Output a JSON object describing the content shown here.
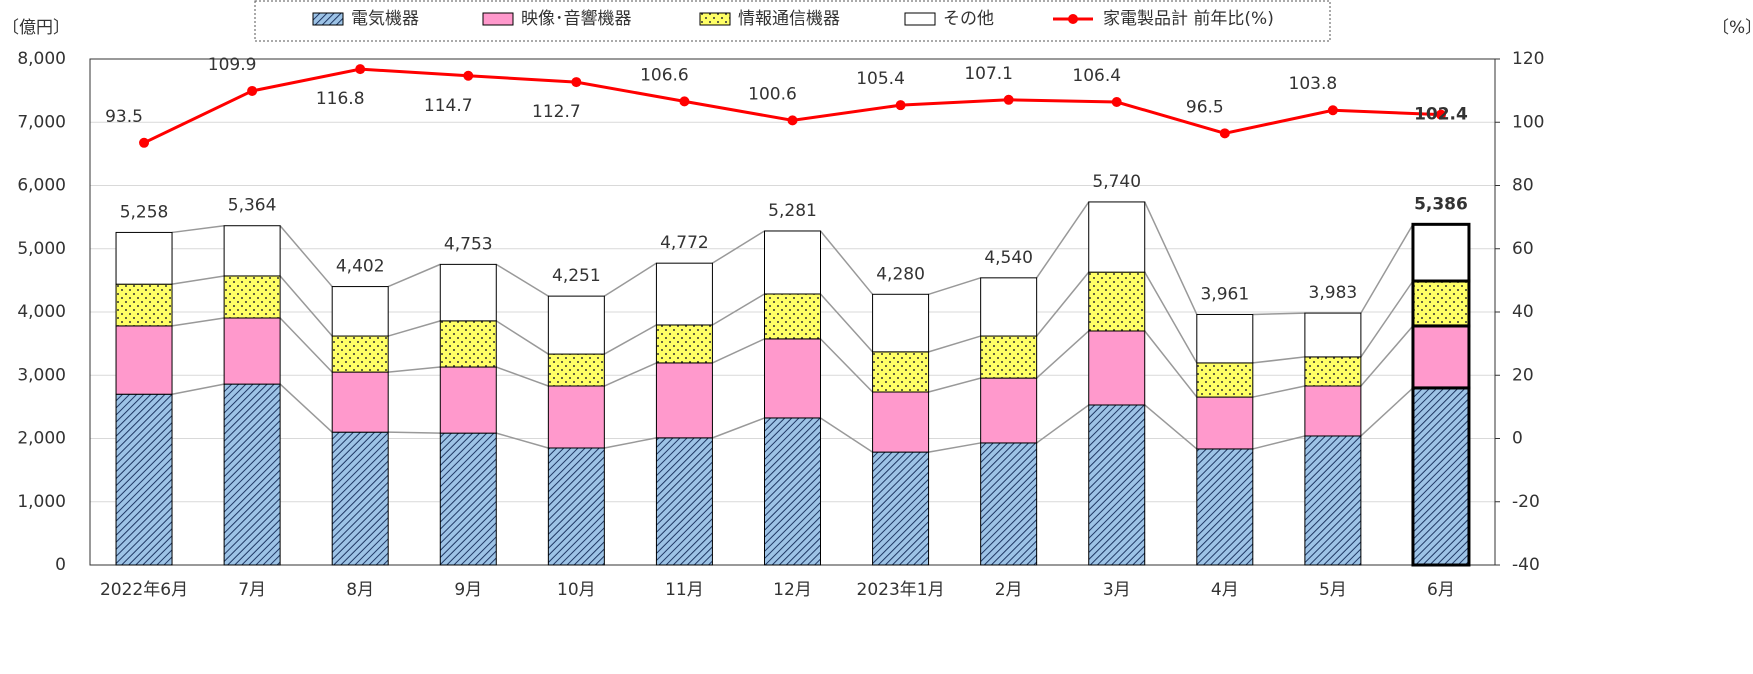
{
  "chart_data": {
    "type": "bar",
    "y_unit": "〔億円〕",
    "y2_unit": "〔%〕",
    "categories": [
      "2022年6月",
      "7月",
      "8月",
      "9月",
      "10月",
      "11月",
      "12月",
      "2023年1月",
      "2月",
      "3月",
      "4月",
      "5月",
      "6月"
    ],
    "series": [
      {
        "name": "電気機器",
        "color": "#9dc3e6",
        "values": [
          2700,
          2860,
          2100,
          2085,
          1850,
          2010,
          2325,
          1785,
          1930,
          2530,
          1835,
          2040,
          2800
        ]
      },
      {
        "name": "映像･音響機器",
        "color": "#ff99cc",
        "values": [
          1080,
          1045,
          950,
          1045,
          980,
          1185,
          1250,
          950,
          1025,
          1170,
          820,
          790,
          980
        ]
      },
      {
        "name": "情報通信機器",
        "color": "#ffff66",
        "values": [
          660,
          665,
          570,
          730,
          505,
          600,
          710,
          635,
          665,
          930,
          540,
          460,
          710
        ]
      },
      {
        "name": "その他",
        "color": "#ffffff",
        "values": [
          818,
          794,
          782,
          893,
          916,
          977,
          996,
          910,
          920,
          1110,
          766,
          693,
          896
        ]
      },
      {
        "name": "家電製品計 前年比(%)",
        "type": "line",
        "axis": "y2",
        "color": "#ff0000",
        "values": [
          93.5,
          109.9,
          116.8,
          114.7,
          112.7,
          106.6,
          100.6,
          105.4,
          107.1,
          106.4,
          96.5,
          103.8,
          102.4
        ]
      }
    ],
    "totals": [
      5258,
      5364,
      4402,
      4753,
      4251,
      4772,
      5281,
      4280,
      4540,
      5740,
      3961,
      3983,
      5386
    ],
    "total_labels": [
      "5,258",
      "5,364",
      "4,402",
      "4,753",
      "4,251",
      "4,772",
      "5,281",
      "4,280",
      "4,540",
      "5,740",
      "3,961",
      "3,983",
      "5,386"
    ],
    "ylim": [
      0,
      8000
    ],
    "yticks": [
      0,
      {
        "value": 1000,
        "label": "1,000"
      },
      {
        "value": 2000,
        "label": "2,000"
      },
      {
        "value": 3000,
        "label": "3,000"
      },
      {
        "value": 4000,
        "label": "4,000"
      },
      {
        "value": 5000,
        "label": "5,000"
      },
      {
        "value": 6000,
        "label": "6,000"
      },
      {
        "value": 7000,
        "label": "7,000"
      },
      {
        "value": 8000,
        "label": "8,000"
      }
    ],
    "y2lim": [
      -40,
      120
    ],
    "y2ticks": [
      -40,
      -20,
      0,
      20,
      40,
      60,
      80,
      100,
      120
    ],
    "grid": true,
    "legend": "top"
  }
}
